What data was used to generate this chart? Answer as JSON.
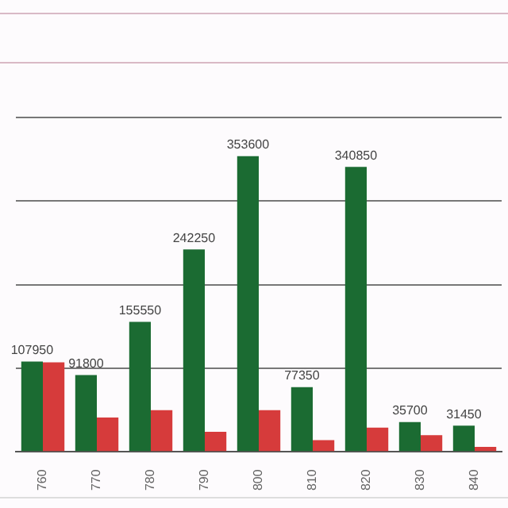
{
  "chart_data": {
    "type": "bar",
    "categories": [
      "760",
      "770",
      "780",
      "790",
      "800",
      "810",
      "820",
      "830",
      "840"
    ],
    "series": [
      {
        "color": "#1b6b32",
        "values": [
          107950,
          91800,
          155550,
          242250,
          353600,
          77350,
          340850,
          35700,
          31450
        ],
        "value_labels": [
          "107950",
          "91800",
          "155550",
          "242250",
          "353600",
          "77350",
          "340850",
          "35700",
          "31450"
        ]
      },
      {
        "color": "#d63b3b",
        "values": [
          107000,
          41000,
          50000,
          24000,
          50000,
          14000,
          29000,
          20000,
          6000
        ]
      }
    ],
    "ylim": [
      0,
      400000
    ],
    "yticks": [
      {
        "value": 0,
        "label": null
      },
      {
        "value": 100000,
        "label": null
      },
      {
        "value": 200000,
        "label": null
      },
      {
        "value": 300000,
        "label": null
      },
      {
        "value": 400000,
        "label": null
      }
    ],
    "grid": "y",
    "legend": false,
    "tick_labels": "x"
  }
}
